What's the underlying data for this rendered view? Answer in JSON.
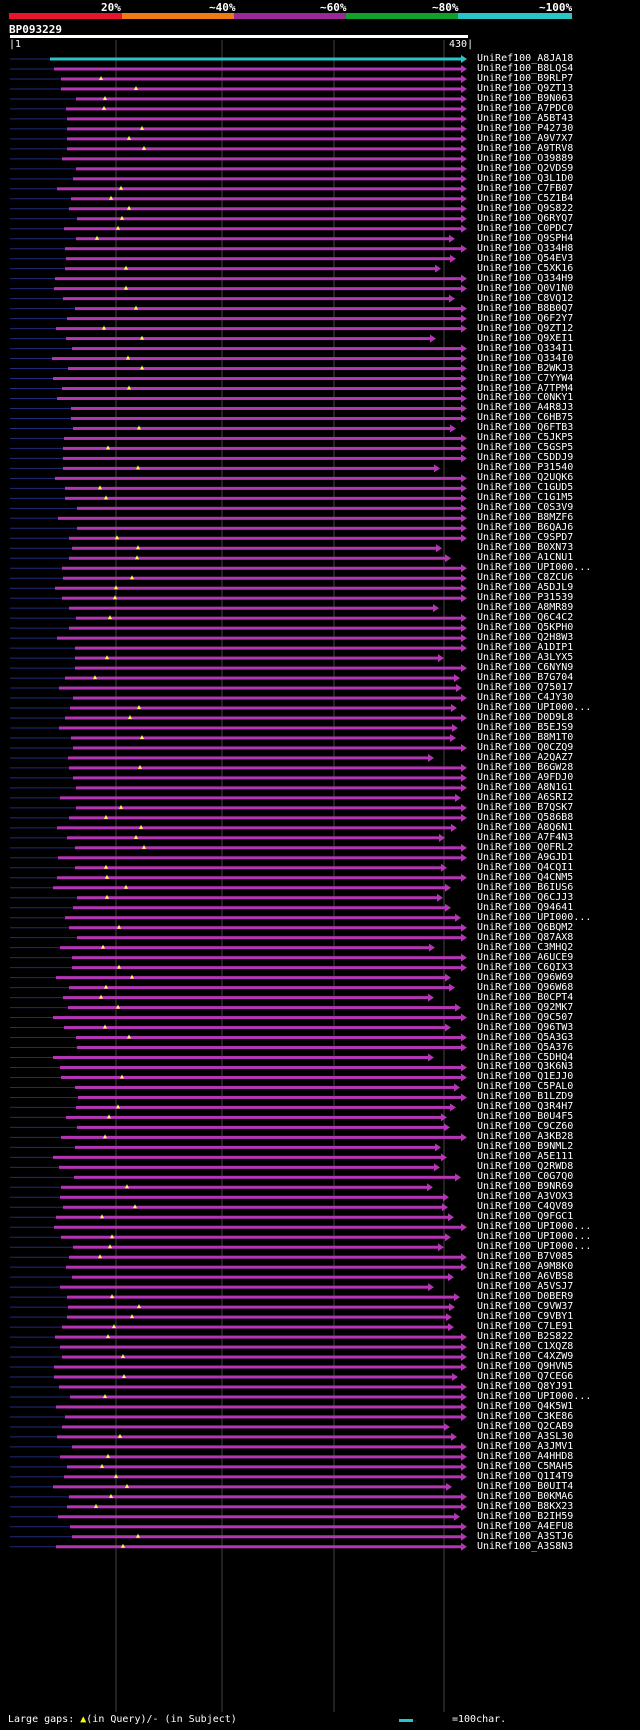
{
  "query": {
    "id": "BP093229",
    "start_label": "1",
    "end_label": "430",
    "length": 430
  },
  "coverage_legend": [
    {
      "label": "20%",
      "color": "#e8142a"
    },
    {
      "label": "~40%",
      "color": "#f07a16"
    },
    {
      "label": "~60%",
      "color": "#9a2896"
    },
    {
      "label": "~80%",
      "color": "#12a02c"
    },
    {
      "label": "~100%",
      "color": "#27c5c5"
    }
  ],
  "colors": {
    "hit": "#b536b5",
    "best_hit": "#27c5c5",
    "gap_marker": "#ffff55",
    "gridline": "#444444",
    "thin_line": "#1f2b7a"
  },
  "footer": {
    "prefix": "Large gaps: ",
    "in_query": "(in Query)/",
    "in_subject": "- (in Subject)",
    "scale_label": "=100char."
  },
  "hits": [
    "UniRef100_A8JA18",
    "UniRef100_B8LQS4",
    "UniRef100_B9RLP7",
    "UniRef100_Q9ZT13",
    "UniRef100_B9N063",
    "UniRef100_A7PDC0",
    "UniRef100_A5BT43",
    "UniRef100_P42730",
    "UniRef100_A9V7X7",
    "UniRef100_A9TRV8",
    "UniRef100_O39889",
    "UniRef100_Q2VDS9",
    "UniRef100_Q3L1D0",
    "UniRef100_C7FB07",
    "UniRef100_C5Z1B4",
    "UniRef100_Q9S822",
    "UniRef100_Q6RYQ7",
    "UniRef100_C0PDC7",
    "UniRef100_Q9SPH4",
    "UniRef100_Q334H8",
    "UniRef100_Q54EV3",
    "UniRef100_C5XK16",
    "UniRef100_Q334H9",
    "UniRef100_Q0V1N0",
    "UniRef100_C8VQ12",
    "UniRef100_B8B0Q7",
    "UniRef100_Q6F2Y7",
    "UniRef100_Q9ZT12",
    "UniRef100_Q9XEI1",
    "UniRef100_Q334I1",
    "UniRef100_Q334I0",
    "UniRef100_B2WKJ3",
    "UniRef100_C7YYW4",
    "UniRef100_A7TPM4",
    "UniRef100_C0NKY1",
    "UniRef100_A4R8J3",
    "UniRef100_C6HB75",
    "UniRef100_Q6FTB3",
    "UniRef100_C5JKP5",
    "UniRef100_C5GSP5",
    "UniRef100_C5DDJ9",
    "UniRef100_P31540",
    "UniRef100_Q2UQK6",
    "UniRef100_C1GUD5",
    "UniRef100_C1G1M5",
    "UniRef100_C0S3V9",
    "UniRef100_B8MZF6",
    "UniRef100_B6QAJ6",
    "UniRef100_C9SPD7",
    "UniRef100_B0XN73",
    "UniRef100_A1CNU1",
    "UniRef100_UPI000...",
    "UniRef100_C8ZCU6",
    "UniRef100_A5DJL9",
    "UniRef100_P31539",
    "UniRef100_A8MR89",
    "UniRef100_Q6C4C2",
    "UniRef100_Q5KPH0",
    "UniRef100_Q2H8W3",
    "UniRef100_A1DIP1",
    "UniRef100_A3LYX5",
    "UniRef100_C6NYN9",
    "UniRef100_B7G704",
    "UniRef100_Q75017",
    "UniRef100_C4JY30",
    "UniRef100_UPI000...",
    "UniRef100_D0D9L8",
    "UniRef100_B5EJS9",
    "UniRef100_B8M1T0",
    "UniRef100_Q0CZQ9",
    "UniRef100_A2QAZ7",
    "UniRef100_B6GW28",
    "UniRef100_A9FDJ0",
    "UniRef100_A8N1G1",
    "UniRef100_A6SRI2",
    "UniRef100_B7QSK7",
    "UniRef100_Q586B8",
    "UniRef100_A8Q6N1",
    "UniRef100_A7F4N3",
    "UniRef100_Q0FRL2",
    "UniRef100_A9GJD1",
    "UniRef100_Q4CQI1",
    "UniRef100_Q4CNM5",
    "UniRef100_B6IUS6",
    "UniRef100_Q6CJJ3",
    "UniRef100_Q94641",
    "UniRef100_UPI000...",
    "UniRef100_Q6BQM2",
    "UniRef100_Q87AX8",
    "UniRef100_C3MHQ2",
    "UniRef100_A6UCE9",
    "UniRef100_C6QIX3",
    "UniRef100_Q96W69",
    "UniRef100_Q96W68",
    "UniRef100_B0CPT4",
    "UniRef100_Q92MK7",
    "UniRef100_Q9C507",
    "UniRef100_Q96TW3",
    "UniRef100_Q5A3G3",
    "UniRef100_Q5A376",
    "UniRef100_C5DHQ4",
    "UniRef100_Q3K6N3",
    "UniRef100_Q1EJJ0",
    "UniRef100_C5PAL0",
    "UniRef100_B1LZD9",
    "UniRef100_Q3R4H7",
    "UniRef100_B0U4F5",
    "UniRef100_C9CZ60",
    "UniRef100_A3KB28",
    "UniRef100_B9NML2",
    "UniRef100_A5E111",
    "UniRef100_Q2RWD8",
    "UniRef100_C0G7Q0",
    "UniRef100_B9NR69",
    "UniRef100_A3VOX3",
    "UniRef100_C4QV89",
    "UniRef100_Q9FGC1",
    "UniRef100_UPI000...",
    "UniRef100_UPI000...",
    "UniRef100_UPI000...",
    "UniRef100_B7V085",
    "UniRef100_A9M8K0",
    "UniRef100_A6VBS8",
    "UniRef100_A5VSJ7",
    "UniRef100_D0BER9",
    "UniRef100_C9VW37",
    "UniRef100_C9VBY1",
    "UniRef100_C7LE91",
    "UniRef100_B2S822",
    "UniRef100_C1XQZ8",
    "UniRef100_C4XZW9",
    "UniRef100_Q9HVN5",
    "UniRef100_Q7CEG6",
    "UniRef100_Q8YJ91",
    "UniRef100_UPI000...",
    "UniRef100_Q4K5W1",
    "UniRef100_C3KE86",
    "UniRef100_Q2CAB9",
    "UniRef100_A3SL30",
    "UniRef100_A3JMV1",
    "UniRef100_A4HHD8",
    "UniRef100_C5MAH5",
    "UniRef100_Q1I4T9",
    "UniRef100_B0UIT4",
    "UniRef100_B0KMA6",
    "UniRef100_B8KX23",
    "UniRef100_B2IH59",
    "UniRef100_A4EFU8",
    "UniRef100_A3STJ6",
    "UniRef100_A3S8N3"
  ]
}
